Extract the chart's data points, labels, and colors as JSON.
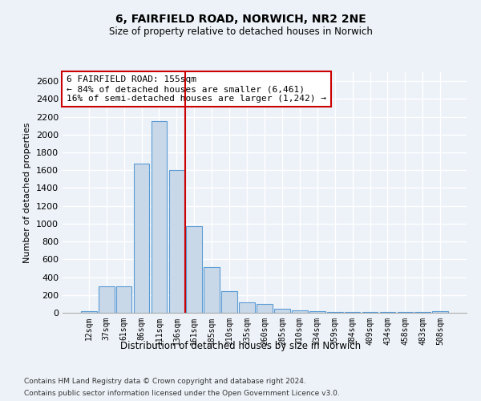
{
  "title": "6, FAIRFIELD ROAD, NORWICH, NR2 2NE",
  "subtitle": "Size of property relative to detached houses in Norwich",
  "xlabel": "Distribution of detached houses by size in Norwich",
  "ylabel": "Number of detached properties",
  "bar_color": "#c8d8e8",
  "bar_edgecolor": "#5b9bd5",
  "vline_color": "#cc0000",
  "annotation_text": "6 FAIRFIELD ROAD: 155sqm\n← 84% of detached houses are smaller (6,461)\n16% of semi-detached houses are larger (1,242) →",
  "annotation_box_color": "white",
  "annotation_box_edgecolor": "#cc0000",
  "footer1": "Contains HM Land Registry data © Crown copyright and database right 2024.",
  "footer2": "Contains public sector information licensed under the Open Government Licence v3.0.",
  "categories": [
    "12sqm",
    "37sqm",
    "61sqm",
    "86sqm",
    "111sqm",
    "136sqm",
    "161sqm",
    "185sqm",
    "210sqm",
    "235sqm",
    "260sqm",
    "285sqm",
    "310sqm",
    "334sqm",
    "359sqm",
    "384sqm",
    "409sqm",
    "434sqm",
    "458sqm",
    "483sqm",
    "508sqm"
  ],
  "values": [
    20,
    300,
    300,
    1670,
    2150,
    1600,
    970,
    510,
    245,
    120,
    100,
    45,
    30,
    15,
    5,
    5,
    5,
    5,
    5,
    5,
    20
  ],
  "ylim": [
    0,
    2700
  ],
  "yticks": [
    0,
    200,
    400,
    600,
    800,
    1000,
    1200,
    1400,
    1600,
    1800,
    2000,
    2200,
    2400,
    2600
  ],
  "vline_idx": 5.5,
  "background_color": "#edf2f8",
  "grid_color": "white"
}
